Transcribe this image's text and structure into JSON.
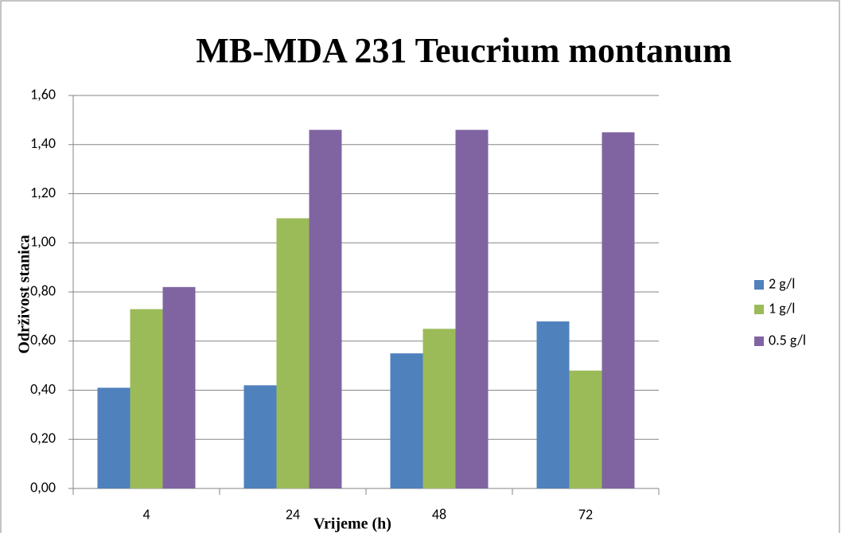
{
  "chart_data": {
    "type": "bar",
    "title": "MB-MDA 231 Teucrium montanum",
    "x_label": "Vrijeme (h)",
    "y_label": "Održivost stanica",
    "categories": [
      "4",
      "24",
      "48",
      "72"
    ],
    "series": [
      {
        "name": "2 g/l",
        "color": "#4f81bd",
        "values": [
          0.41,
          0.42,
          0.55,
          0.68
        ]
      },
      {
        "name": "1 g/l",
        "color": "#9bbb59",
        "values": [
          0.73,
          1.1,
          0.65,
          0.48
        ]
      },
      {
        "name": "0.5 g/l",
        "color": "#8064a2",
        "values": [
          0.82,
          1.46,
          1.46,
          1.45
        ]
      }
    ],
    "ylim": [
      0,
      1.6
    ],
    "yticks": [
      {
        "value": 0,
        "label": "0,00"
      },
      {
        "value": 0.2,
        "label": "0,20"
      },
      {
        "value": 0.4,
        "label": "0,40"
      },
      {
        "value": 0.6,
        "label": "0,60"
      },
      {
        "value": 0.8,
        "label": "0,80"
      },
      {
        "value": 1.0,
        "label": "1,00"
      },
      {
        "value": 1.2,
        "label": "1,20"
      },
      {
        "value": 1.4,
        "label": "1,40"
      },
      {
        "value": 1.6,
        "label": "1,60"
      }
    ],
    "grid": true,
    "legend": "right"
  }
}
